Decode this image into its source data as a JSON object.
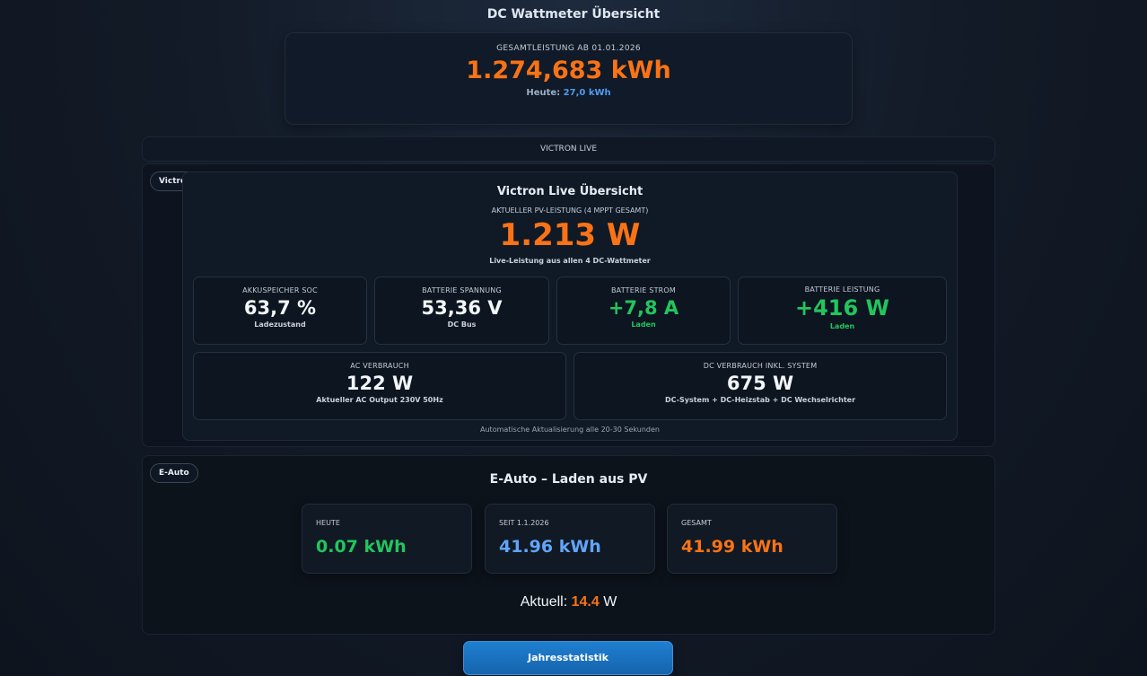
{
  "page": {
    "title": "DC Wattmeter Übersicht"
  },
  "total": {
    "label": "GESAMTLEISTUNG AB 01.01.2026",
    "value": "1.274,683 kWh",
    "today_label": "Heute:",
    "today_value": "27,0 kWh"
  },
  "victron_bar": {
    "label": "VICTRON LIVE"
  },
  "victron": {
    "badge": "Victron",
    "title": "Victron Live Übersicht",
    "subtitle": "AKTUELLER PV-LEISTUNG (4 MPPT GESAMT)",
    "pv_power": "1.213 W",
    "note": "Live-Leistung aus allen 4 DC-Wattmeter",
    "tiles": [
      {
        "label": "AKKUSPEICHER SOC",
        "value": "63,7 %",
        "sub": "Ladezustand"
      },
      {
        "label": "BATTERIE SPANNUNG",
        "value": "53,36 V",
        "sub": "DC Bus"
      },
      {
        "label": "BATTERIE STROM",
        "value": "+7,8 A",
        "sub": "Laden"
      },
      {
        "label": "BATTERIE LEISTUNG",
        "value": "+416 W",
        "sub": "Laden"
      },
      {
        "label": "AC VERBRAUCH",
        "value": "122 W",
        "sub": "Aktueller AC Output 230V 50Hz"
      },
      {
        "label": "DC VERBRAUCH INKL. SYSTEM",
        "value": "675 W",
        "sub": "DC-System + DC-Heizstab + DC Wechselrichter"
      }
    ],
    "auto_note": "Automatische Aktualisierung alle 20-30 Sekunden",
    "colors": {
      "accent": "#f97316",
      "positive": "#22c55e"
    }
  },
  "eauto": {
    "badge": "E-Auto",
    "title": "E-Auto – Laden aus PV",
    "cards": [
      {
        "label": "HEUTE",
        "value": "0.07 kWh",
        "color": "#22c55e"
      },
      {
        "label": "SEIT 1.1.2026",
        "value": "41.96 kWh",
        "color": "#60a5fa"
      },
      {
        "label": "GESAMT",
        "value": "41.99 kWh",
        "color": "#f97316"
      }
    ],
    "now_label": "Aktuell:",
    "now_value": "14.4",
    "now_unit": "W"
  },
  "button": {
    "label": "Jahresstatistik"
  }
}
